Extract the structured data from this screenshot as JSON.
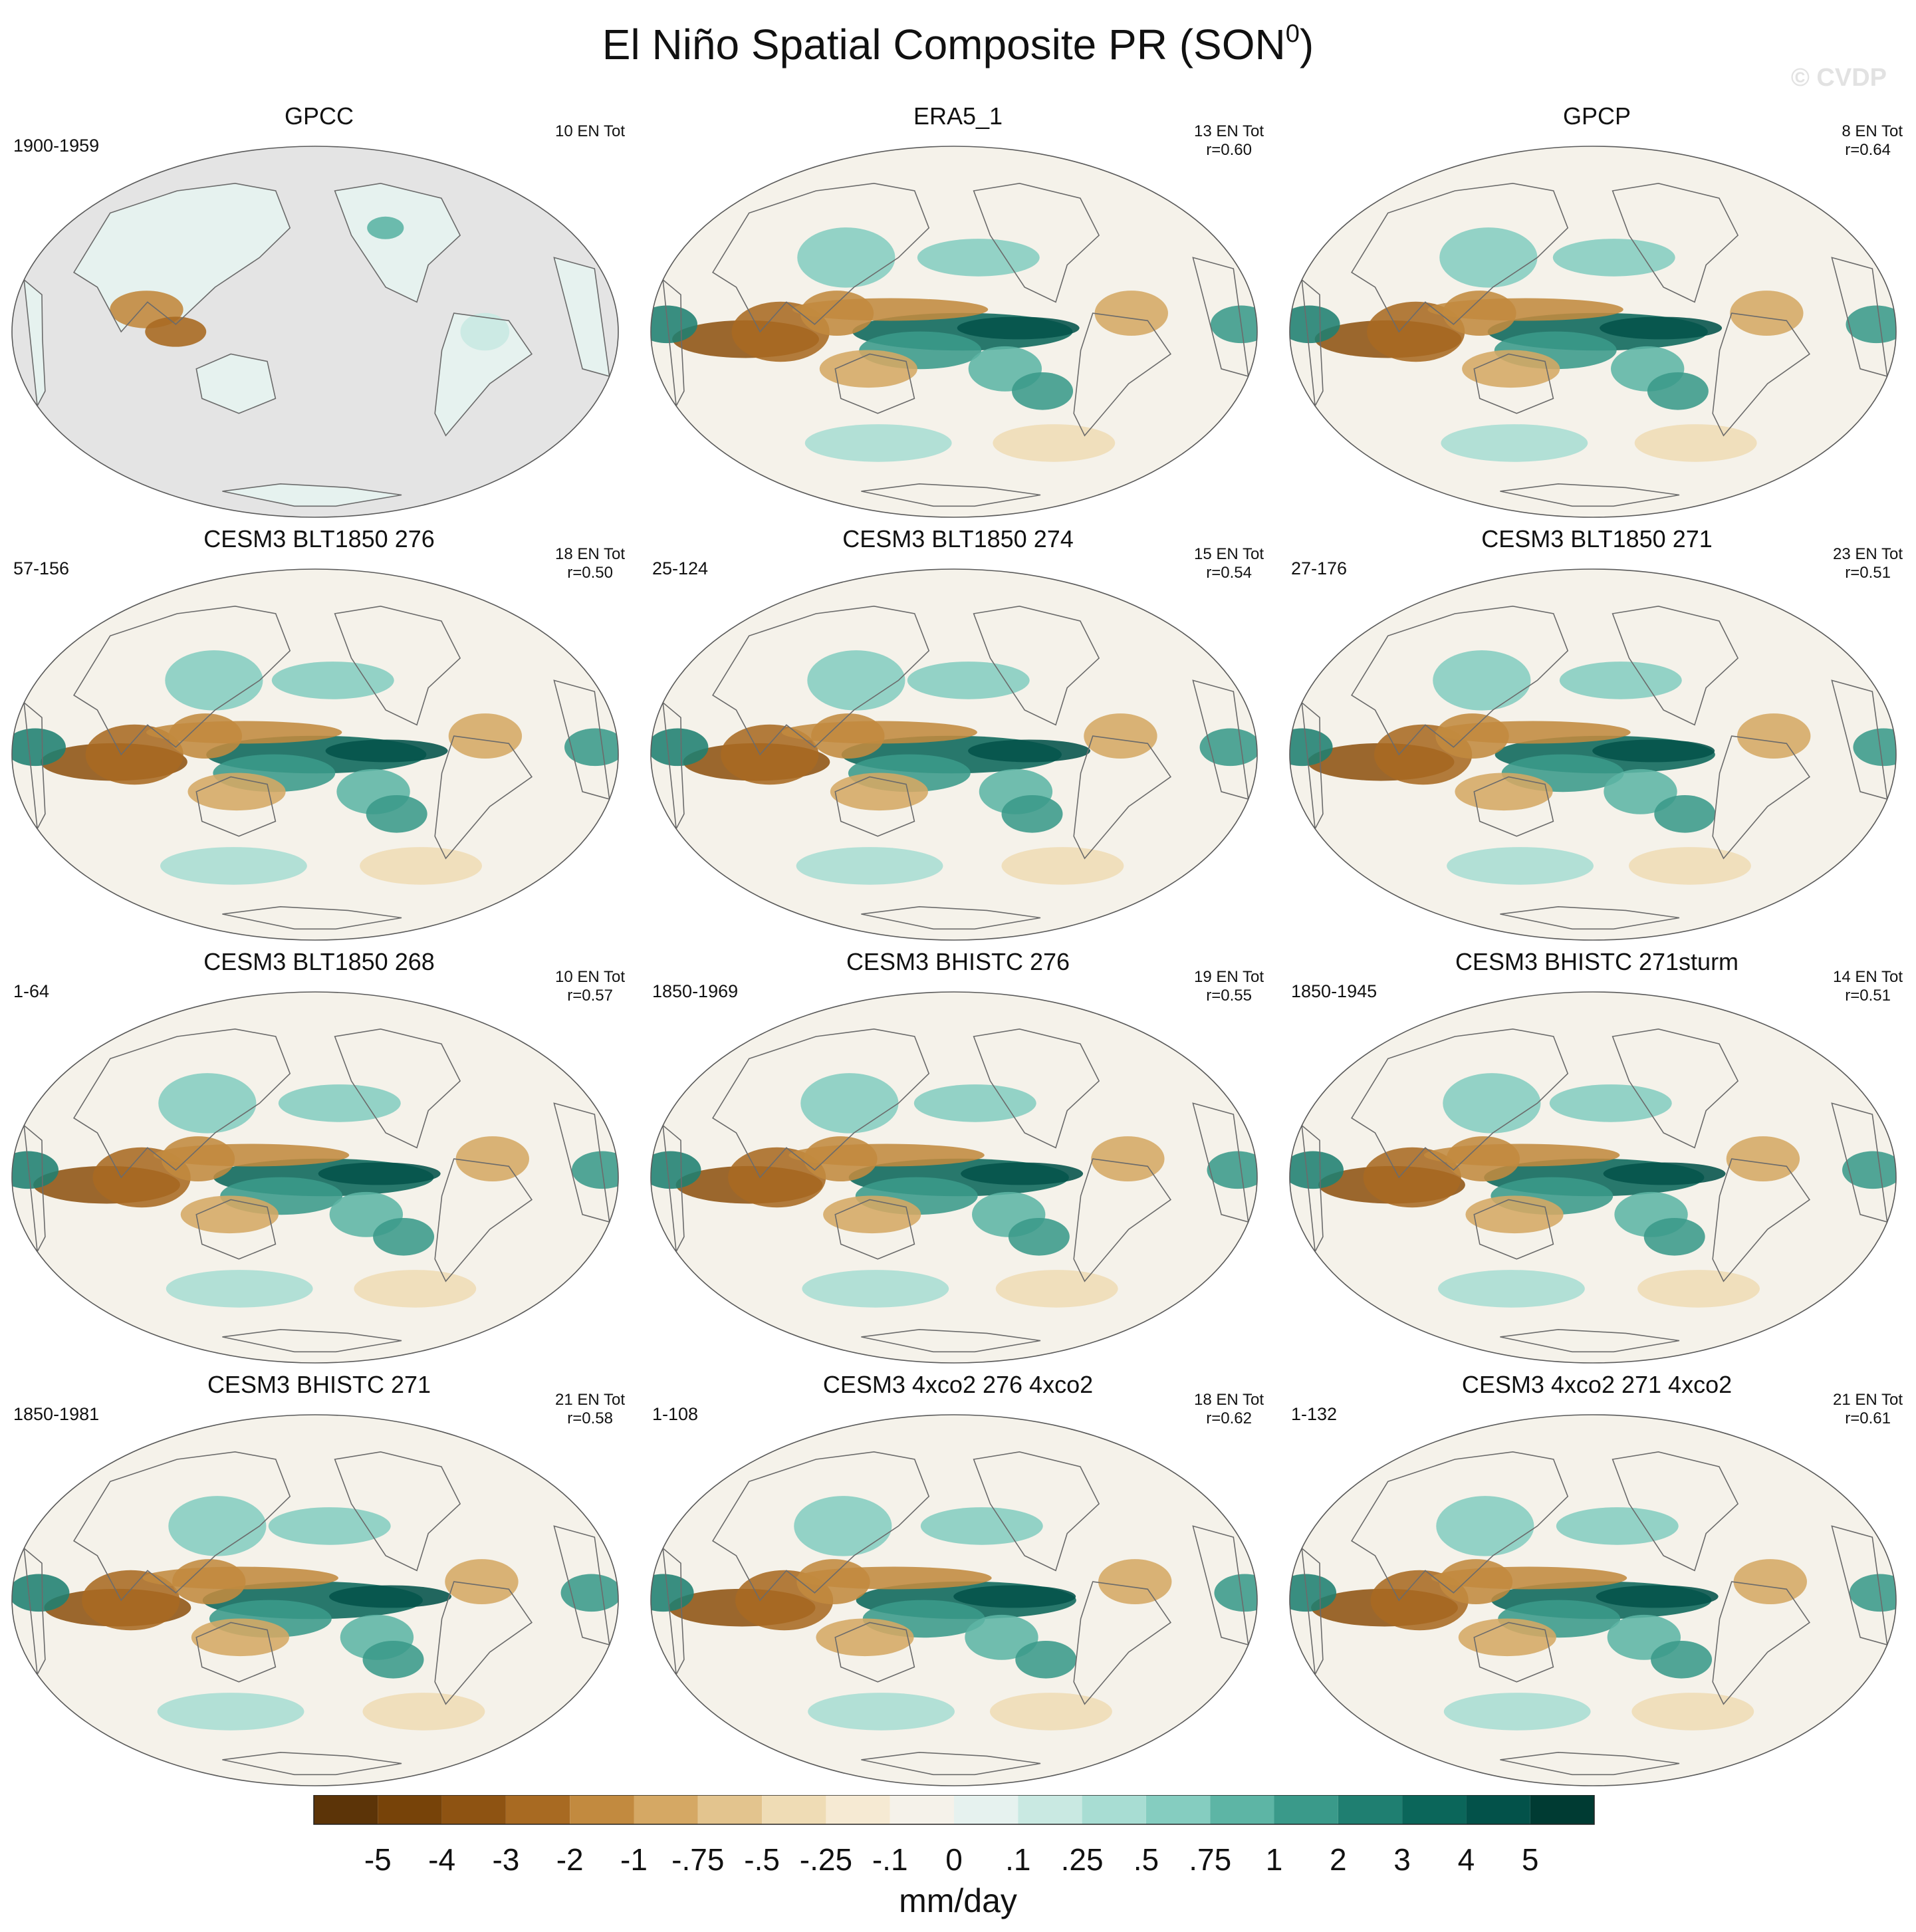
{
  "figure": {
    "title_main": "El Niño Spatial Composite PR (SON",
    "title_sup": "0",
    "title_close": ")",
    "watermark": "© CVDP"
  },
  "colors": {
    "ocean_gray": "#e4e4e4",
    "coast": "#6b6b6b",
    "border": "#5a5a5a"
  },
  "panels": [
    {
      "title": "GPCC",
      "years": "1900-1959",
      "en_tot": "10 EN Tot",
      "corr": "",
      "land_only": true
    },
    {
      "title": "ERA5_1",
      "years": "",
      "en_tot": "13 EN Tot",
      "corr": "r=0.60",
      "land_only": false
    },
    {
      "title": "GPCP",
      "years": "",
      "en_tot": "8 EN Tot",
      "corr": "r=0.64",
      "land_only": false
    },
    {
      "title": "CESM3 BLT1850 276",
      "years": "57-156",
      "en_tot": "18 EN Tot",
      "corr": "r=0.50",
      "land_only": false
    },
    {
      "title": "CESM3 BLT1850 274",
      "years": "25-124",
      "en_tot": "15 EN Tot",
      "corr": "r=0.54",
      "land_only": false
    },
    {
      "title": "CESM3 BLT1850 271",
      "years": "27-176",
      "en_tot": "23 EN Tot",
      "corr": "r=0.51",
      "land_only": false
    },
    {
      "title": "CESM3 BLT1850 268",
      "years": "1-64",
      "en_tot": "10 EN Tot",
      "corr": "r=0.57",
      "land_only": false
    },
    {
      "title": "CESM3 BHISTC 276",
      "years": "1850-1969",
      "en_tot": "19 EN Tot",
      "corr": "r=0.55",
      "land_only": false
    },
    {
      "title": "CESM3 BHISTC 271sturm",
      "years": "1850-1945",
      "en_tot": "14 EN Tot",
      "corr": "r=0.51",
      "land_only": false
    },
    {
      "title": "CESM3 BHISTC 271",
      "years": "1850-1981",
      "en_tot": "21 EN Tot",
      "corr": "r=0.58",
      "land_only": false
    },
    {
      "title": "CESM3 4xco2 276 4xco2",
      "years": "1-108",
      "en_tot": "18 EN Tot",
      "corr": "r=0.62",
      "land_only": false
    },
    {
      "title": "CESM3 4xco2 271 4xco2",
      "years": "1-132",
      "en_tot": "21 EN Tot",
      "corr": "r=0.61",
      "land_only": false
    }
  ],
  "colorbar": {
    "units": "mm/day",
    "tick_labels": [
      "-5",
      "-4",
      "-3",
      "-2",
      "-1",
      "-.75",
      "-.5",
      "-.25",
      "-.1",
      "0",
      ".1",
      ".25",
      ".5",
      ".75",
      "1",
      "2",
      "3",
      "4",
      "5"
    ],
    "colors": [
      "#5c3408",
      "#774309",
      "#8e5312",
      "#a86a22",
      "#c28a3f",
      "#d5a864",
      "#e3c48e",
      "#efdcb5",
      "#f6ead3",
      "#f5f2ea",
      "#e6f2ef",
      "#c9e9e2",
      "#a8ddd3",
      "#85cdc0",
      "#5db5a5",
      "#3a9a8a",
      "#1f7f71",
      "#0b665a",
      "#03524a",
      "#003b33"
    ]
  }
}
